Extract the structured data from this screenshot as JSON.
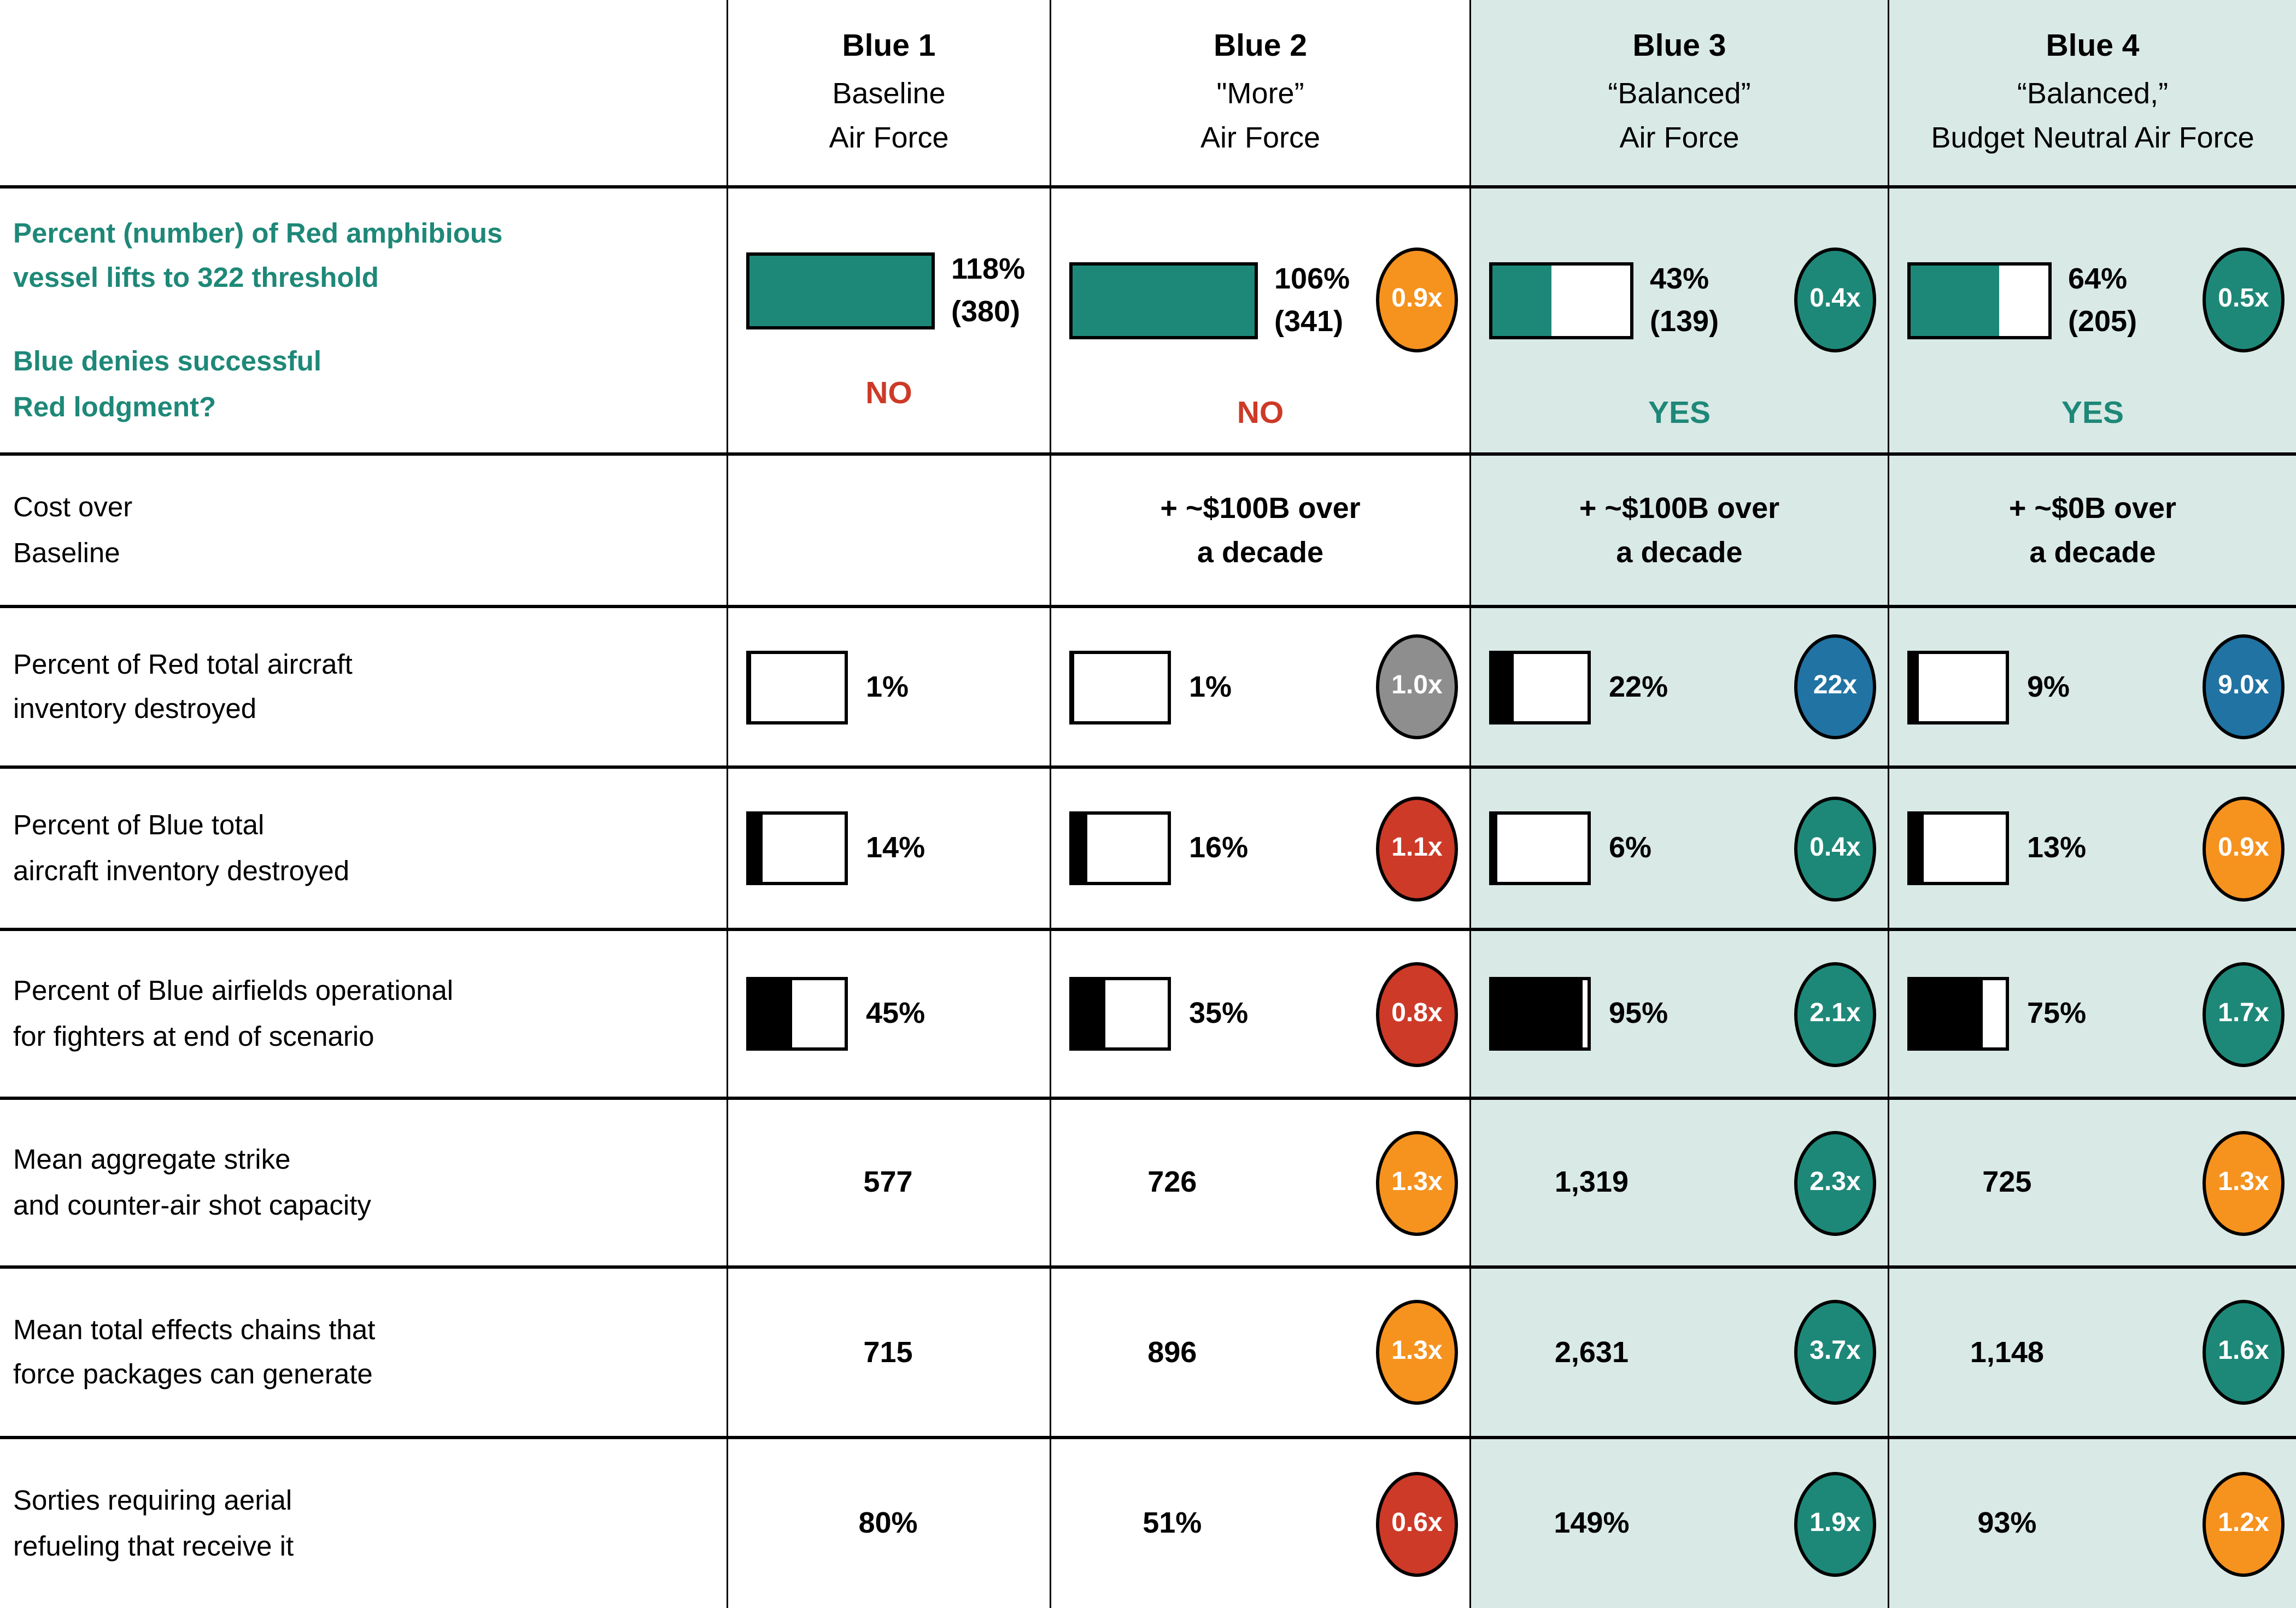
{
  "colors": {
    "teal": "#1E8878",
    "light_teal_bg": "#D9E9E6",
    "orange": "#F6921E",
    "red": "#CD3A28",
    "gray": "#8E8E8E",
    "blue": "#2173A3",
    "black": "#000000"
  },
  "header": {
    "columns": [
      {
        "title": "Blue 1",
        "line2": "Baseline",
        "line3": "Air Force",
        "highlighted": false
      },
      {
        "title": "Blue 2",
        "line2": "\"More”",
        "line3": "Air Force",
        "highlighted": false
      },
      {
        "title": "Blue 3",
        "line2": "“Balanced”",
        "line3": "Air Force",
        "highlighted": true
      },
      {
        "title": "Blue 4",
        "line2": "“Balanced,”",
        "line3": "Budget Neutral Air Force",
        "highlighted": true
      }
    ]
  },
  "rows": [
    {
      "label": "Percent (number) of Red amphibious\nvessel lifts to 322 threshold",
      "label2": "Blue denies successful\nRed lodgment?",
      "cells": [
        {
          "bar_fill_pct": 100,
          "value": "118%",
          "number": "(380)",
          "verdict": "NO",
          "verdict_color": "#CD3A28"
        },
        {
          "bar_fill_pct": 100,
          "value": "106%",
          "number": "(341)",
          "multiplier": "0.9x",
          "multiplier_color": "#F6921E",
          "verdict": "NO",
          "verdict_color": "#CD3A28"
        },
        {
          "bar_fill_pct": 43,
          "value": "43%",
          "number": "(139)",
          "multiplier": "0.4x",
          "multiplier_color": "#1E8878",
          "verdict": "YES",
          "verdict_color": "#1E8878"
        },
        {
          "bar_fill_pct": 64,
          "value": "64%",
          "number": "(205)",
          "multiplier": "0.5x",
          "multiplier_color": "#1E8878",
          "verdict": "YES",
          "verdict_color": "#1E8878"
        }
      ]
    },
    {
      "label": "Cost over\nBaseline",
      "cells": [
        {
          "text": ""
        },
        {
          "text": "+ ~$100B over\na decade"
        },
        {
          "text": "+ ~$100B over\na decade"
        },
        {
          "text": "+ ~$0B over\na decade"
        }
      ]
    },
    {
      "label": "Percent of Red total aircraft\ninventory destroyed",
      "cells": [
        {
          "bar_fill_pct": 1,
          "value": "1%"
        },
        {
          "bar_fill_pct": 1,
          "value": "1%",
          "multiplier": "1.0x",
          "multiplier_color": "#8E8E8E"
        },
        {
          "bar_fill_pct": 22,
          "value": "22%",
          "multiplier": "22x",
          "multiplier_color": "#2173A3"
        },
        {
          "bar_fill_pct": 9,
          "value": "9%",
          "multiplier": "9.0x",
          "multiplier_color": "#2173A3"
        }
      ]
    },
    {
      "label": "Percent of Blue total\naircraft inventory destroyed",
      "cells": [
        {
          "bar_fill_pct": 14,
          "value": "14%"
        },
        {
          "bar_fill_pct": 16,
          "value": "16%",
          "multiplier": "1.1x",
          "multiplier_color": "#CD3A28"
        },
        {
          "bar_fill_pct": 6,
          "value": "6%",
          "multiplier": "0.4x",
          "multiplier_color": "#1E8878"
        },
        {
          "bar_fill_pct": 13,
          "value": "13%",
          "multiplier": "0.9x",
          "multiplier_color": "#F6921E"
        }
      ]
    },
    {
      "label": "Percent of Blue airfields operational\nfor fighters at end of scenario",
      "cells": [
        {
          "bar_fill_pct": 45,
          "value": "45%"
        },
        {
          "bar_fill_pct": 35,
          "value": "35%",
          "multiplier": "0.8x",
          "multiplier_color": "#CD3A28"
        },
        {
          "bar_fill_pct": 95,
          "value": "95%",
          "multiplier": "2.1x",
          "multiplier_color": "#1E8878"
        },
        {
          "bar_fill_pct": 75,
          "value": "75%",
          "multiplier": "1.7x",
          "multiplier_color": "#1E8878"
        }
      ]
    },
    {
      "label": "Mean aggregate strike\nand counter-air shot capacity",
      "cells": [
        {
          "value": "577"
        },
        {
          "value": "726",
          "multiplier": "1.3x",
          "multiplier_color": "#F6921E"
        },
        {
          "value": "1,319",
          "multiplier": "2.3x",
          "multiplier_color": "#1E8878"
        },
        {
          "value": "725",
          "multiplier": "1.3x",
          "multiplier_color": "#F6921E"
        }
      ]
    },
    {
      "label": "Mean total effects chains that\nforce packages can generate",
      "cells": [
        {
          "value": "715"
        },
        {
          "value": "896",
          "multiplier": "1.3x",
          "multiplier_color": "#F6921E"
        },
        {
          "value": "2,631",
          "multiplier": "3.7x",
          "multiplier_color": "#1E8878"
        },
        {
          "value": "1,148",
          "multiplier": "1.6x",
          "multiplier_color": "#1E8878"
        }
      ]
    },
    {
      "label": "Sorties requiring aerial\nrefueling that receive it",
      "cells": [
        {
          "value": "80%"
        },
        {
          "value": "51%",
          "multiplier": "0.6x",
          "multiplier_color": "#CD3A28"
        },
        {
          "value": "149%",
          "multiplier": "1.9x",
          "multiplier_color": "#1E8878"
        },
        {
          "value": "93%",
          "multiplier": "1.2x",
          "multiplier_color": "#F6921E"
        }
      ]
    }
  ],
  "chart_data": {
    "type": "table",
    "title": "Comparison of Blue Air Force alternatives",
    "columns": [
      "Blue 1 Baseline Air Force",
      "Blue 2 \"More\" Air Force",
      "Blue 3 \"Balanced\" Air Force",
      "Blue 4 \"Balanced,\" Budget Neutral Air Force"
    ],
    "rows": [
      {
        "metric": "Percent (number) of Red amphibious vessel lifts to 322 threshold",
        "values": [
          "118% (380)",
          "106% (341)",
          "43% (139)",
          "64% (205)"
        ],
        "multipliers": [
          null,
          "0.9x",
          "0.4x",
          "0.5x"
        ],
        "blue_denies_successful_red_lodgment": [
          "NO",
          "NO",
          "YES",
          "YES"
        ]
      },
      {
        "metric": "Cost over Baseline",
        "values": [
          null,
          "+ ~$100B over a decade",
          "+ ~$100B over a decade",
          "+ ~$0B over a decade"
        ],
        "multipliers": [
          null,
          null,
          null,
          null
        ]
      },
      {
        "metric": "Percent of Red total aircraft inventory destroyed",
        "values": [
          "1%",
          "1%",
          "22%",
          "9%"
        ],
        "multipliers": [
          null,
          "1.0x",
          "22x",
          "9.0x"
        ]
      },
      {
        "metric": "Percent of Blue total aircraft inventory destroyed",
        "values": [
          "14%",
          "16%",
          "6%",
          "13%"
        ],
        "multipliers": [
          null,
          "1.1x",
          "0.4x",
          "0.9x"
        ]
      },
      {
        "metric": "Percent of Blue airfields operational for fighters at end of scenario",
        "values": [
          "45%",
          "35%",
          "95%",
          "75%"
        ],
        "multipliers": [
          null,
          "0.8x",
          "2.1x",
          "1.7x"
        ]
      },
      {
        "metric": "Mean aggregate strike and counter-air shot capacity",
        "values": [
          577,
          726,
          1319,
          725
        ],
        "multipliers": [
          null,
          "1.3x",
          "2.3x",
          "1.3x"
        ]
      },
      {
        "metric": "Mean total effects chains that force packages can generate",
        "values": [
          715,
          896,
          2631,
          1148
        ],
        "multipliers": [
          null,
          "1.3x",
          "3.7x",
          "1.6x"
        ]
      },
      {
        "metric": "Sorties requiring aerial refueling that receive it",
        "values": [
          "80%",
          "51%",
          "149%",
          "93%"
        ],
        "multipliers": [
          null,
          "0.6x",
          "1.9x",
          "1.2x"
        ]
      }
    ]
  }
}
